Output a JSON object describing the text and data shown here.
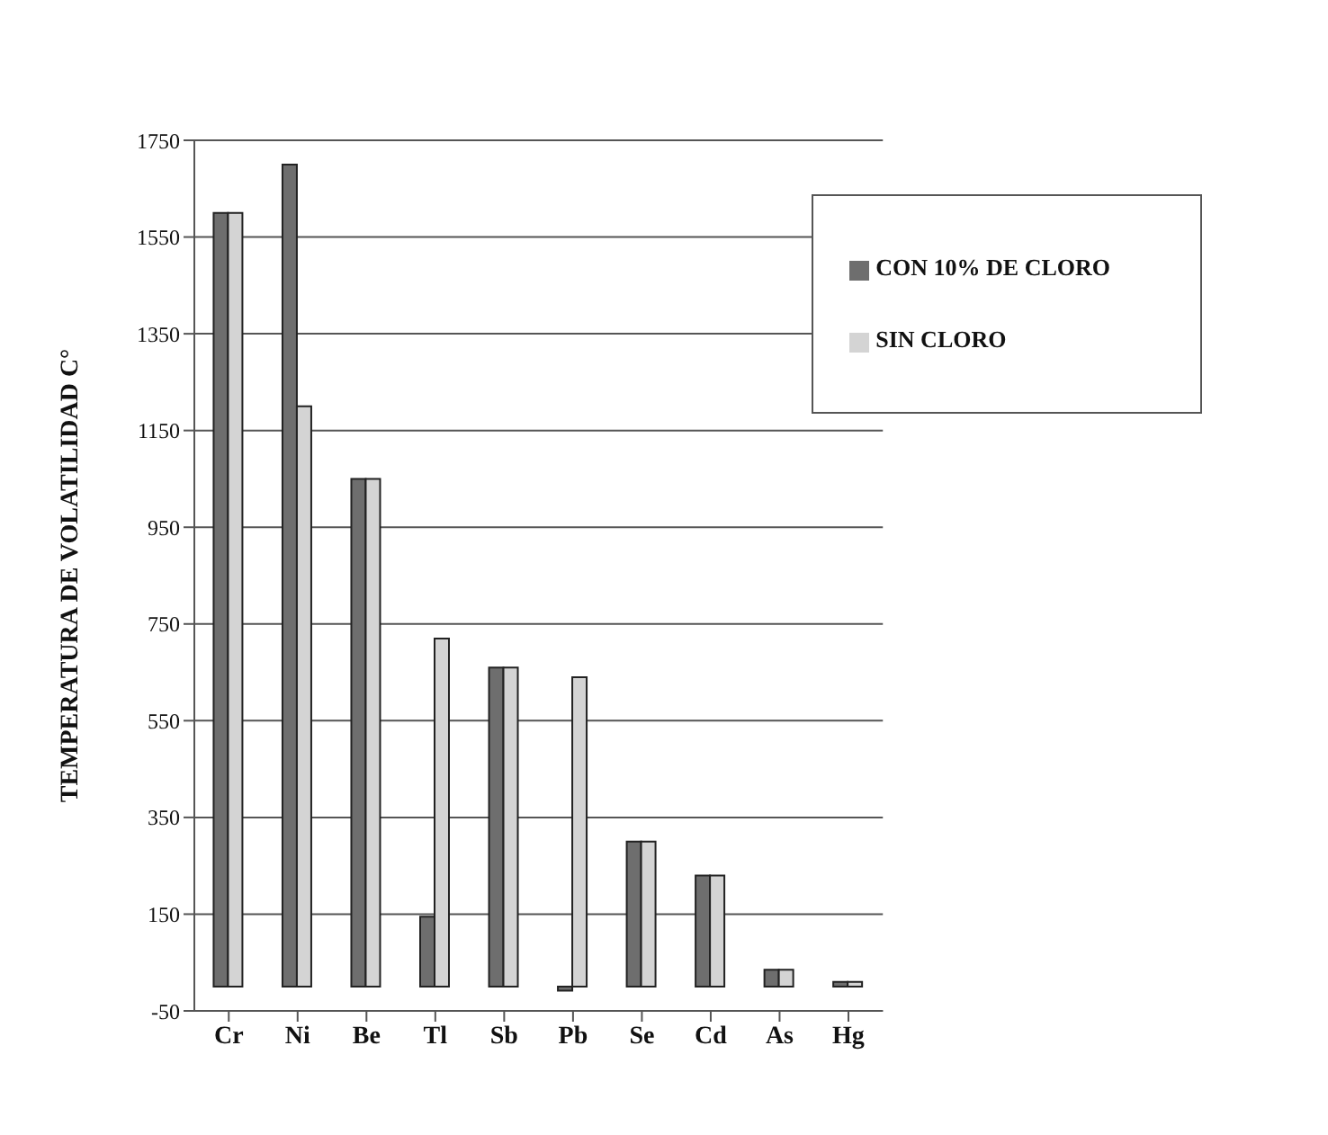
{
  "chart_data": {
    "type": "bar",
    "ylabel": "TEMPERATURA DE VOLATILIDAD C°",
    "categories": [
      "Cr",
      "Ni",
      "Be",
      "Tl",
      "Sb",
      "Pb",
      "Se",
      "Cd",
      "As",
      "Hg"
    ],
    "series": [
      {
        "name": "CON 10% DE CLORO",
        "color": "#6e6e6e",
        "values": [
          1600,
          1700,
          1050,
          145,
          660,
          -8,
          300,
          230,
          35,
          10
        ]
      },
      {
        "name": "SIN CLORO",
        "color": "#d4d4d4",
        "values": [
          1600,
          1200,
          1050,
          720,
          660,
          640,
          300,
          230,
          35,
          10
        ]
      }
    ],
    "ylim": [
      -50,
      1750
    ],
    "yticks": [
      -50,
      150,
      350,
      550,
      750,
      950,
      1150,
      1350,
      1550,
      1750
    ],
    "grid": "y",
    "legend": "top right"
  }
}
